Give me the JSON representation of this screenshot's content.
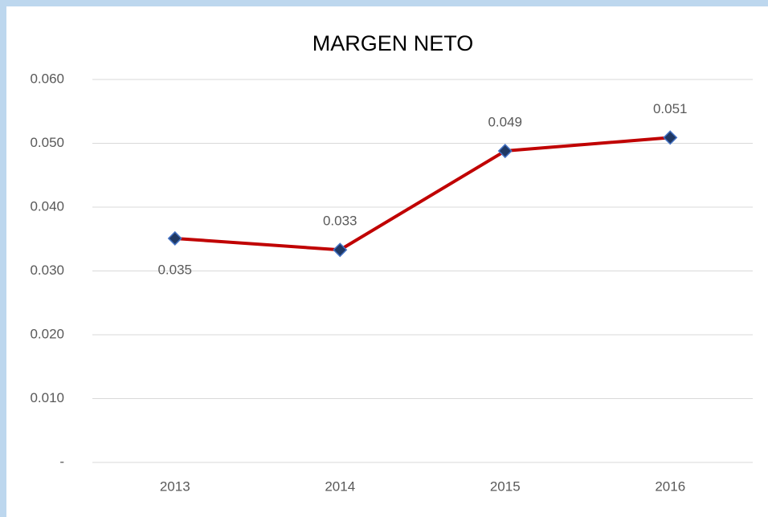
{
  "chart_data": {
    "type": "line",
    "title": "MARGEN NETO",
    "categories": [
      "2013",
      "2014",
      "2015",
      "2016"
    ],
    "values": [
      0.0351,
      0.0333,
      0.0488,
      0.0509
    ],
    "value_labels": [
      "0.035",
      "0.033",
      "0.049",
      "0.051"
    ],
    "color": "#c00000",
    "marker_color": "#1f3864",
    "ylim": [
      0,
      0.06
    ],
    "yticks": [
      {
        "value": 0,
        "label": "-"
      },
      {
        "value": 0.01,
        "label": "0.010"
      },
      {
        "value": 0.02,
        "label": "0.020"
      },
      {
        "value": 0.03,
        "label": "0.030"
      },
      {
        "value": 0.04,
        "label": "0.040"
      },
      {
        "value": 0.05,
        "label": "0.050"
      },
      {
        "value": 0.06,
        "label": "0.060"
      }
    ],
    "grid": true
  }
}
